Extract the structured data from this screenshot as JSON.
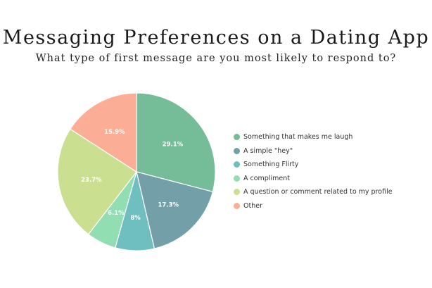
{
  "chart_data": {
    "type": "pie",
    "title": "Messaging Preferences on a Dating App",
    "subtitle": "What type of first message are you most likely to respond to?",
    "slices": [
      {
        "label": "Something that makes me laugh",
        "value": 29.1,
        "display": "29.1%",
        "color": "#75bd98"
      },
      {
        "label": "A simple \"hey\"",
        "value": 17.3,
        "display": "17.3%",
        "color": "#73a0a8"
      },
      {
        "label": "Something Flirty",
        "value": 8,
        "display": "8%",
        "color": "#6fbfc1"
      },
      {
        "label": "A compliment",
        "value": 6.1,
        "display": "6.1%",
        "color": "#90deb2"
      },
      {
        "label": "A question or comment related to my profile",
        "value": 23.7,
        "display": "23.7%",
        "color": "#cbdf90"
      },
      {
        "label": "Other",
        "value": 15.9,
        "display": "15.9%",
        "color": "#fbae95"
      }
    ],
    "legend_position": "right"
  }
}
